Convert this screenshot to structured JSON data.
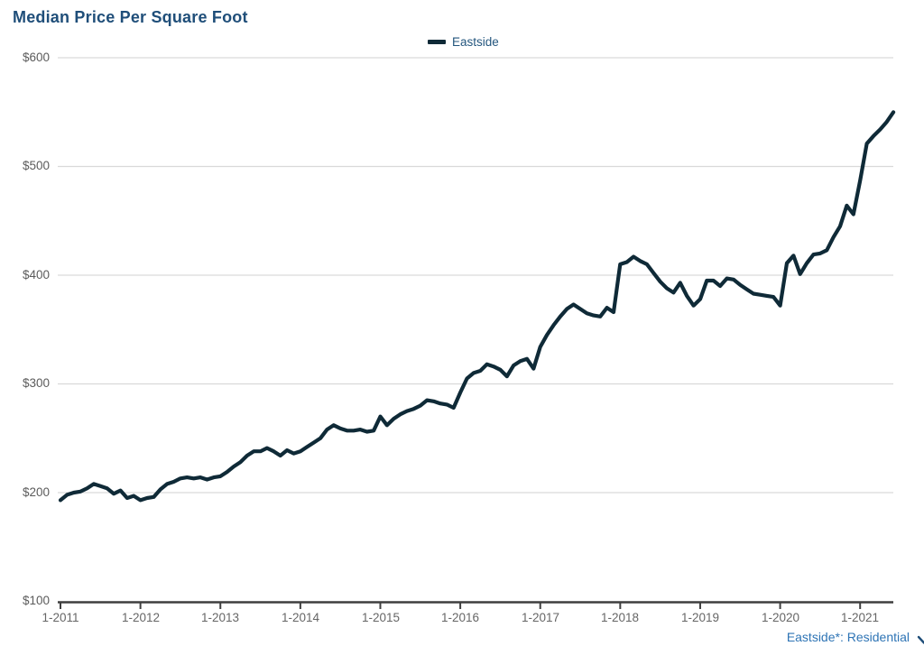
{
  "header": {
    "title": "Median Price Per Square Foot"
  },
  "legend": {
    "items": [
      {
        "label": "Eastside",
        "swatch": "line-swatch",
        "color": "#0f2a37"
      }
    ],
    "position": "top-center"
  },
  "footer": {
    "label": "Eastside*: Residential",
    "icon": "chevron-down-icon"
  },
  "colors": {
    "line": "#0f2a37",
    "title_blue": "#1f4e79",
    "link_blue": "#2e74b5",
    "tick_label_gray": "#5b5b5b",
    "gridline": "#d9d9d9",
    "axis": "#3f3f3f",
    "background": "#ffffff"
  },
  "chart_data": {
    "type": "line",
    "title": "Median Price Per Square Foot",
    "xlabel": "",
    "ylabel": "",
    "ylim": [
      100,
      600
    ],
    "y_tick_labels": [
      "$600",
      "$500",
      "$400",
      "$300",
      "$200",
      "$100"
    ],
    "y_tick_values": [
      600,
      500,
      400,
      300,
      200,
      100
    ],
    "x_tick_labels": [
      "1-2011",
      "1-2012",
      "1-2013",
      "1-2014",
      "1-2015",
      "1-2016",
      "1-2017",
      "1-2018",
      "1-2019",
      "1-2020",
      "1-2021"
    ],
    "x_interval": "monthly",
    "x_start": "1-2011",
    "x_end": "6-2021",
    "grid": "horizontal-only",
    "legend_position": "top-center",
    "series": [
      {
        "name": "Eastside",
        "color": "#0f2a37",
        "values": [
          193,
          198,
          200,
          201,
          204,
          208,
          206,
          204,
          199,
          202,
          195,
          197,
          193,
          195,
          196,
          203,
          208,
          210,
          213,
          214,
          213,
          214,
          212,
          214,
          215,
          219,
          224,
          228,
          234,
          238,
          238,
          241,
          238,
          234,
          239,
          236,
          238,
          242,
          246,
          250,
          258,
          262,
          259,
          257,
          257,
          258,
          256,
          257,
          270,
          262,
          268,
          272,
          275,
          277,
          280,
          285,
          284,
          282,
          281,
          278,
          292,
          305,
          310,
          312,
          318,
          316,
          313,
          307,
          317,
          321,
          323,
          314,
          334,
          345,
          354,
          362,
          369,
          373,
          369,
          365,
          363,
          362,
          370,
          366,
          410,
          412,
          417,
          413,
          410,
          402,
          394,
          388,
          384,
          393,
          381,
          372,
          378,
          395,
          395,
          390,
          397,
          396,
          391,
          387,
          383,
          382,
          381,
          380,
          372,
          411,
          418,
          401,
          411,
          419,
          420,
          423,
          435,
          445,
          464,
          456,
          487,
          521,
          528,
          534,
          541,
          550
        ]
      }
    ]
  }
}
